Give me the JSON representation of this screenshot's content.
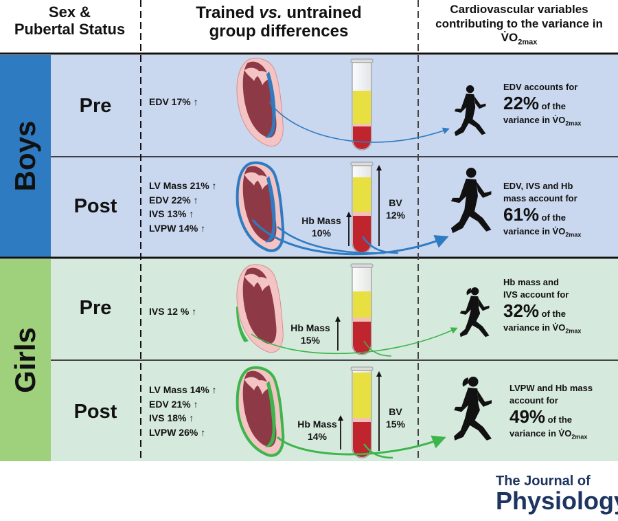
{
  "headers": {
    "col1_line1": "Sex &",
    "col1_line2": "Pubertal Status",
    "col2_line1_a": "Trained ",
    "col2_line1_b": "vs.",
    "col2_line1_c": " untrained",
    "col2_line2": "group differences",
    "col3_line1": "Cardiovascular variables",
    "col3_line2": "contributing to the variance in",
    "col3_line3": "V̇O",
    "col3_line3_sub": "2max"
  },
  "groups": {
    "boys": {
      "label": "Boys",
      "color": "#2f7bc2",
      "band_color": "#c9d7ef"
    },
    "girls": {
      "label": "Girls",
      "color": "#9fd07c",
      "band_color": "#d6e9dd"
    }
  },
  "rows": {
    "boys_pre": {
      "stage": "Pre",
      "differences": [
        "EDV 17% ↑"
      ],
      "result_before": [
        "EDV accounts for"
      ],
      "percent": "22%",
      "of_the": " of the",
      "variance": "variance in V̇O",
      "variance_sub": "2max"
    },
    "boys_post": {
      "stage": "Post",
      "differences": [
        "LV Mass 21% ↑",
        "EDV 22% ↑",
        "IVS 13% ↑",
        "LVPW 14% ↑"
      ],
      "hb_mass_label": "Hb Mass",
      "hb_mass_value": "10%",
      "bv_label": "BV",
      "bv_value": "12%",
      "result_before": [
        "EDV, IVS and Hb",
        "mass account for"
      ],
      "percent": "61%",
      "of_the": " of the",
      "variance": "variance in V̇O",
      "variance_sub": "2max"
    },
    "girls_pre": {
      "stage": "Pre",
      "differences": [
        "IVS 12 % ↑"
      ],
      "hb_mass_label": "Hb Mass",
      "hb_mass_value": "15%",
      "result_before": [
        "Hb mass and",
        "IVS account for"
      ],
      "percent": "32%",
      "of_the": " of the",
      "variance": "variance in V̇O",
      "variance_sub": "2max"
    },
    "girls_post": {
      "stage": "Post",
      "differences": [
        "LV Mass 14% ↑",
        "EDV 21% ↑",
        "IVS 18% ↑",
        "LVPW 26% ↑"
      ],
      "hb_mass_label": "Hb Mass",
      "hb_mass_value": "14%",
      "bv_label": "BV",
      "bv_value": "15%",
      "result_before": [
        "LVPW and Hb mass",
        "account for"
      ],
      "percent": "49%",
      "of_the": " of the",
      "variance": "variance in V̇O",
      "variance_sub": "2max"
    }
  },
  "icons": {
    "heart": "heart-icon",
    "tube": "blood-tube-icon",
    "runner_male": "runner-male-icon",
    "runner_female": "runner-female-icon"
  },
  "journal": {
    "line1": "The Journal of",
    "line2": "Physiology"
  }
}
